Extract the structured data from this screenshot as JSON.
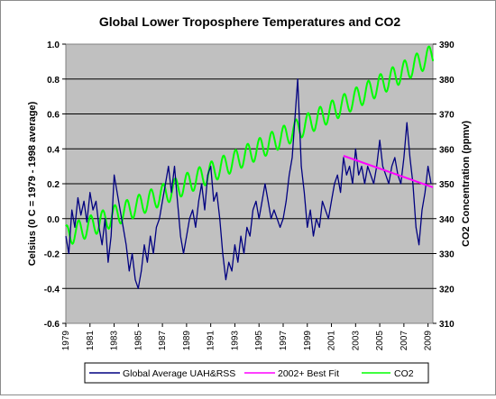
{
  "chart_data": {
    "type": "line",
    "title": "Global Lower Troposphere Temperatures  and CO2",
    "ylabel_left": "Celsius (0 C = 1979 - 1998 average)",
    "ylabel_right": "CO2 Concentration (ppmv)",
    "xlabel": "",
    "x_tick_labels": [
      "1979",
      "1981",
      "1983",
      "1985",
      "1987",
      "1989",
      "1991",
      "1993",
      "1995",
      "1997",
      "1999",
      "2001",
      "2003",
      "2005",
      "2007",
      "2009"
    ],
    "xlim": [
      1979,
      2009.4
    ],
    "ylim_left": [
      -0.6,
      1.0
    ],
    "ylim_right": [
      310,
      390
    ],
    "y_left_ticks": [
      "-0.6",
      "-0.4",
      "-0.2",
      "0.0",
      "0.2",
      "0.4",
      "0.6",
      "0.8",
      "1.0"
    ],
    "y_right_ticks": [
      "310",
      "320",
      "330",
      "340",
      "350",
      "360",
      "370",
      "380",
      "390"
    ],
    "grid": "horizontal",
    "plot_background": "#c0c0c0",
    "legend_placement": "bottom",
    "series": [
      {
        "name": "Global Average UAH&RSS",
        "axis": "left",
        "color": "#000080",
        "x": [
          1979.0,
          1979.25,
          1979.5,
          1979.75,
          1980.0,
          1980.25,
          1980.5,
          1980.75,
          1981.0,
          1981.25,
          1981.5,
          1981.75,
          1982.0,
          1982.25,
          1982.5,
          1982.75,
          1983.0,
          1983.25,
          1983.5,
          1983.75,
          1984.0,
          1984.25,
          1984.5,
          1984.75,
          1985.0,
          1985.25,
          1985.5,
          1985.75,
          1986.0,
          1986.25,
          1986.5,
          1986.75,
          1987.0,
          1987.25,
          1987.5,
          1987.75,
          1988.0,
          1988.25,
          1988.5,
          1988.75,
          1989.0,
          1989.25,
          1989.5,
          1989.75,
          1990.0,
          1990.25,
          1990.5,
          1990.75,
          1991.0,
          1991.25,
          1991.5,
          1991.75,
          1992.0,
          1992.25,
          1992.5,
          1992.75,
          1993.0,
          1993.25,
          1993.5,
          1993.75,
          1994.0,
          1994.25,
          1994.5,
          1994.75,
          1995.0,
          1995.25,
          1995.5,
          1995.75,
          1996.0,
          1996.25,
          1996.5,
          1996.75,
          1997.0,
          1997.25,
          1997.5,
          1997.75,
          1998.0,
          1998.2,
          1998.35,
          1998.5,
          1998.75,
          1999.0,
          1999.25,
          1999.5,
          1999.75,
          2000.0,
          2000.25,
          2000.5,
          2000.75,
          2001.0,
          2001.25,
          2001.5,
          2001.75,
          2002.0,
          2002.25,
          2002.5,
          2002.75,
          2003.0,
          2003.25,
          2003.5,
          2003.75,
          2004.0,
          2004.25,
          2004.5,
          2004.75,
          2005.0,
          2005.25,
          2005.5,
          2005.75,
          2006.0,
          2006.25,
          2006.5,
          2006.75,
          2007.0,
          2007.25,
          2007.5,
          2007.75,
          2008.0,
          2008.25,
          2008.5,
          2008.75,
          2009.0,
          2009.25
        ],
        "values": [
          -0.1,
          -0.2,
          0.05,
          -0.05,
          0.12,
          0.02,
          0.1,
          -0.02,
          0.15,
          0.05,
          0.1,
          -0.05,
          -0.15,
          0.0,
          -0.25,
          -0.1,
          0.25,
          0.15,
          0.05,
          -0.05,
          -0.15,
          -0.3,
          -0.2,
          -0.35,
          -0.4,
          -0.3,
          -0.15,
          -0.25,
          -0.1,
          -0.2,
          -0.05,
          0.0,
          0.1,
          0.2,
          0.3,
          0.15,
          0.3,
          0.1,
          -0.1,
          -0.2,
          -0.1,
          0.0,
          0.05,
          -0.05,
          0.1,
          0.2,
          0.05,
          0.25,
          0.3,
          0.1,
          0.15,
          0.0,
          -0.2,
          -0.35,
          -0.25,
          -0.3,
          -0.15,
          -0.25,
          -0.1,
          -0.2,
          -0.05,
          -0.1,
          0.05,
          0.1,
          0.0,
          0.1,
          0.2,
          0.1,
          0.0,
          0.05,
          0.0,
          -0.05,
          0.0,
          0.1,
          0.25,
          0.35,
          0.6,
          0.8,
          0.55,
          0.3,
          0.15,
          -0.05,
          0.05,
          -0.1,
          0.0,
          -0.05,
          0.1,
          0.05,
          0.0,
          0.1,
          0.2,
          0.25,
          0.15,
          0.35,
          0.25,
          0.3,
          0.2,
          0.4,
          0.25,
          0.3,
          0.2,
          0.3,
          0.25,
          0.2,
          0.3,
          0.45,
          0.3,
          0.25,
          0.2,
          0.3,
          0.35,
          0.25,
          0.2,
          0.35,
          0.55,
          0.35,
          0.2,
          -0.05,
          -0.15,
          0.05,
          0.15,
          0.3,
          0.2
        ]
      },
      {
        "name": "2002+ Best Fit",
        "axis": "left",
        "color": "#ff00ff",
        "x": [
          2002.0,
          2009.4
        ],
        "values": [
          0.36,
          0.18
        ]
      },
      {
        "name": "CO2",
        "axis": "right",
        "color": "#00ff00",
        "model": "seasonal",
        "start_year": 1979,
        "end_year": 2009.4,
        "start_ppm": 335,
        "end_ppm": 387,
        "seasonal_amplitude_ppm": 3.0
      }
    ]
  }
}
